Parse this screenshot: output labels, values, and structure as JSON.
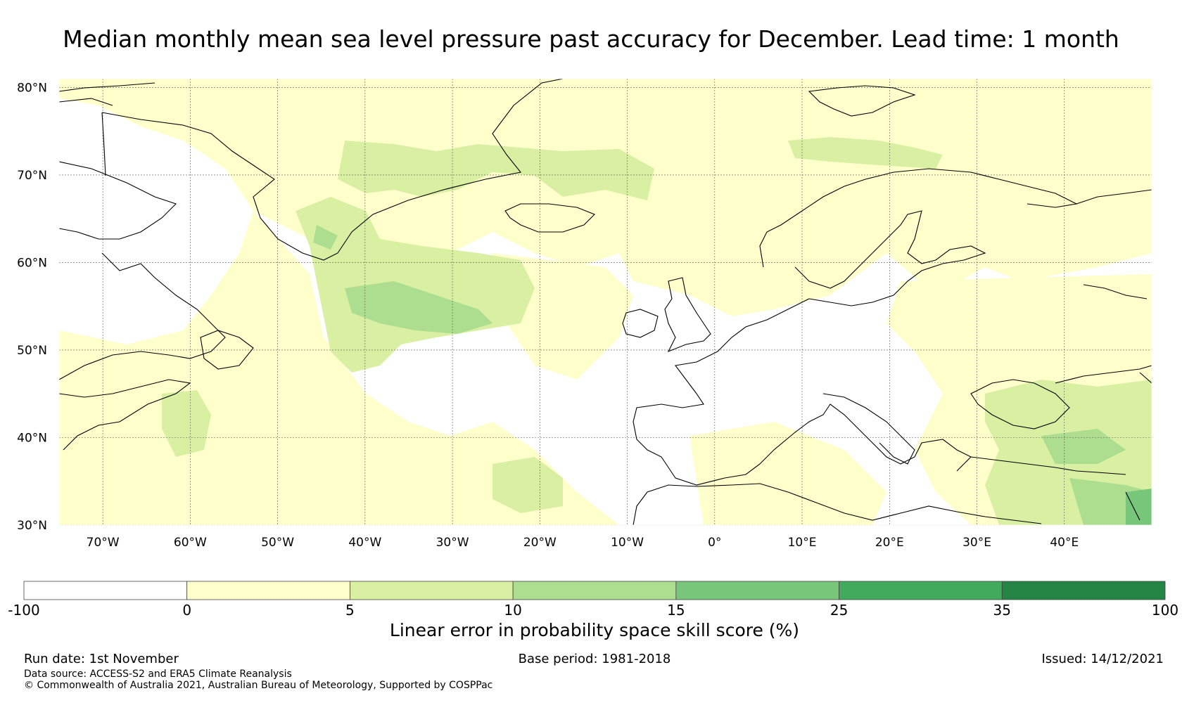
{
  "title": "Median monthly mean sea level pressure past accuracy for December. Lead time: 1 month",
  "map": {
    "lat_labels": [
      "80°N",
      "70°N",
      "60°N",
      "50°N",
      "40°N",
      "30°N"
    ],
    "lat_values": [
      80,
      70,
      60,
      50,
      40,
      30
    ],
    "lon_labels": [
      "70°W",
      "60°W",
      "50°W",
      "40°W",
      "30°W",
      "20°W",
      "10°W",
      "0°",
      "10°E",
      "20°E",
      "30°E",
      "40°E"
    ],
    "lon_values": [
      -70,
      -60,
      -50,
      -40,
      -30,
      -20,
      -10,
      0,
      10,
      20,
      30,
      40
    ],
    "extent": {
      "lon_min": -75,
      "lon_max": 50,
      "lat_min": 30,
      "lat_max": 81
    }
  },
  "colorbar": {
    "boundaries": [
      "-100",
      "0",
      "5",
      "10",
      "15",
      "25",
      "35",
      "100"
    ],
    "colors": [
      "#ffffff",
      "#ffffcc",
      "#d9f0a3",
      "#addd8e",
      "#78c679",
      "#41ab5d",
      "#238443"
    ],
    "label": "Linear error in probability space skill score (%)"
  },
  "footer": {
    "run_date": "Run date: 1st November",
    "base_period": "Base period: 1981-2018",
    "issued": "Issued: 14/12/2021",
    "data_source": "Data source: ACCESS-S2 and ERA5 Climate Reanalysis",
    "copyright": "© Commonwealth of Australia 2021, Australian Bureau of Meteorology, Supported by COSPPac"
  }
}
